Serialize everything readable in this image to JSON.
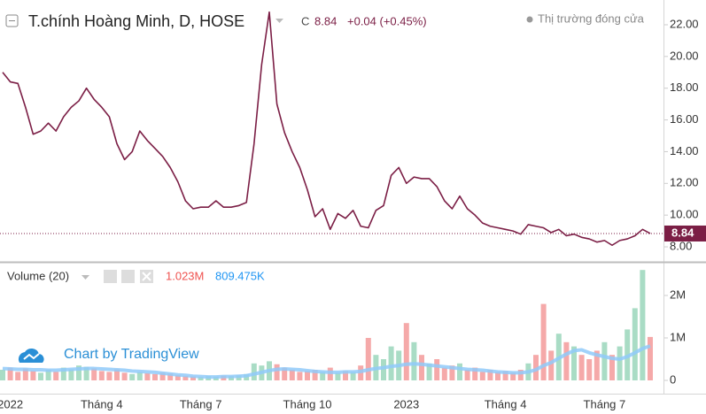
{
  "header": {
    "title": "T.chính Hoàng Minh, D, HOSE",
    "close_label": "C",
    "change": "+0.04 (+0.45%)",
    "status": "Thị trường đóng cửa"
  },
  "watermark": "Chart by TradingView",
  "chart_data": [
    {
      "type": "line",
      "color": "#7b1e45",
      "categories": [
        null,
        "2022",
        null,
        null,
        null,
        null,
        null,
        null,
        null,
        null,
        null,
        null,
        null,
        "Tháng 4",
        null,
        null,
        null,
        null,
        null,
        null,
        null,
        null,
        null,
        null,
        null,
        null,
        "Tháng 7",
        null,
        null,
        null,
        null,
        null,
        null,
        null,
        null,
        null,
        null,
        null,
        null,
        null,
        "Tháng 10",
        null,
        null,
        null,
        null,
        null,
        null,
        null,
        null,
        null,
        null,
        null,
        null,
        "2023",
        null,
        null,
        null,
        null,
        null,
        null,
        null,
        null,
        null,
        null,
        null,
        null,
        "Tháng 4",
        null,
        null,
        null,
        null,
        null,
        null,
        null,
        null,
        null,
        null,
        null,
        null,
        "Tháng 7",
        null,
        null,
        null,
        null,
        null,
        null
      ],
      "values": [
        19.0,
        18.4,
        18.3,
        16.8,
        15.1,
        15.3,
        15.8,
        15.3,
        16.2,
        16.8,
        17.2,
        18.0,
        17.3,
        16.8,
        16.2,
        14.5,
        13.5,
        14.0,
        15.3,
        14.7,
        14.2,
        13.7,
        13.0,
        12.1,
        10.9,
        10.4,
        10.5,
        10.5,
        10.9,
        10.5,
        10.5,
        10.6,
        10.8,
        14.5,
        19.5,
        22.8,
        17.0,
        15.2,
        14.0,
        13.0,
        11.6,
        9.9,
        10.4,
        9.1,
        10.1,
        9.8,
        10.3,
        9.3,
        9.2,
        10.3,
        10.6,
        12.5,
        13.0,
        12.0,
        12.4,
        12.3,
        12.3,
        11.8,
        10.9,
        10.4,
        11.2,
        10.4,
        10.0,
        9.5,
        9.3,
        9.2,
        9.1,
        9.0,
        8.8,
        9.4,
        9.3,
        9.2,
        8.9,
        9.1,
        8.7,
        8.8,
        8.6,
        8.5,
        8.3,
        8.4,
        8.1,
        8.4,
        8.5,
        8.7,
        9.1,
        8.84
      ],
      "ylim": [
        7.11,
        23.56
      ],
      "yticks": [
        {
          "value": 8,
          "label": "8.00"
        },
        {
          "value": 10,
          "label": "10.00"
        },
        {
          "value": 12,
          "label": "12.00"
        },
        {
          "value": 14,
          "label": "14.00"
        },
        {
          "value": 16,
          "label": "16.00"
        },
        {
          "value": 18,
          "label": "18.00"
        },
        {
          "value": 20,
          "label": "20.00"
        },
        {
          "value": 22,
          "label": "22.00"
        }
      ]
    },
    {
      "type": "bar",
      "title": "Volume (20)",
      "up_color": "#a9dcc5",
      "down_color": "#f5a9a9",
      "series": [
        {
          "name": "Volume",
          "color": "#ef5350",
          "value_label": "1.023M",
          "values": [
            250000,
            300000,
            200000,
            280000,
            220000,
            180000,
            250000,
            200000,
            300000,
            260000,
            350000,
            320000,
            280000,
            220000,
            200000,
            260000,
            180000,
            150000,
            200000,
            170000,
            150000,
            180000,
            160000,
            120000,
            100000,
            90000,
            80000,
            100000,
            90000,
            110000,
            100000,
            120000,
            150000,
            400000,
            350000,
            450000,
            380000,
            300000,
            250000,
            200000,
            220000,
            250000,
            200000,
            300000,
            180000,
            220000,
            200000,
            350000,
            1000000,
            600000,
            500000,
            800000,
            700000,
            1350000,
            900000,
            600000,
            400000,
            500000,
            300000,
            350000,
            400000,
            250000,
            300000,
            200000,
            250000,
            200000,
            220000,
            180000,
            250000,
            400000,
            600000,
            1800000,
            700000,
            1100000,
            900000,
            800000,
            600000,
            500000,
            700000,
            900000,
            600000,
            800000,
            1200000,
            1700000,
            2600000,
            1023000
          ]
        },
        {
          "name": "MA",
          "color": "#90caf9",
          "value_label": "809.475K",
          "values": [
            280000,
            270000,
            260000,
            260000,
            250000,
            250000,
            240000,
            240000,
            250000,
            260000,
            270000,
            280000,
            280000,
            270000,
            260000,
            250000,
            240000,
            220000,
            210000,
            200000,
            190000,
            170000,
            150000,
            130000,
            120000,
            100000,
            90000,
            80000,
            80000,
            90000,
            90000,
            100000,
            110000,
            150000,
            190000,
            230000,
            260000,
            270000,
            260000,
            250000,
            230000,
            210000,
            200000,
            190000,
            190000,
            200000,
            200000,
            210000,
            250000,
            280000,
            300000,
            330000,
            350000,
            380000,
            390000,
            380000,
            360000,
            340000,
            320000,
            300000,
            280000,
            260000,
            250000,
            240000,
            220000,
            200000,
            190000,
            180000,
            180000,
            200000,
            250000,
            350000,
            420000,
            520000,
            620000,
            700000,
            720000,
            650000,
            600000,
            560000,
            520000,
            500000,
            560000,
            650000,
            750000,
            809475
          ]
        }
      ],
      "ylim": [
        -312500,
        2750000
      ],
      "yticks": [
        0,
        {
          "value": 1000000,
          "label": "1M"
        },
        {
          "value": 2000000,
          "label": "2M"
        }
      ]
    }
  ]
}
